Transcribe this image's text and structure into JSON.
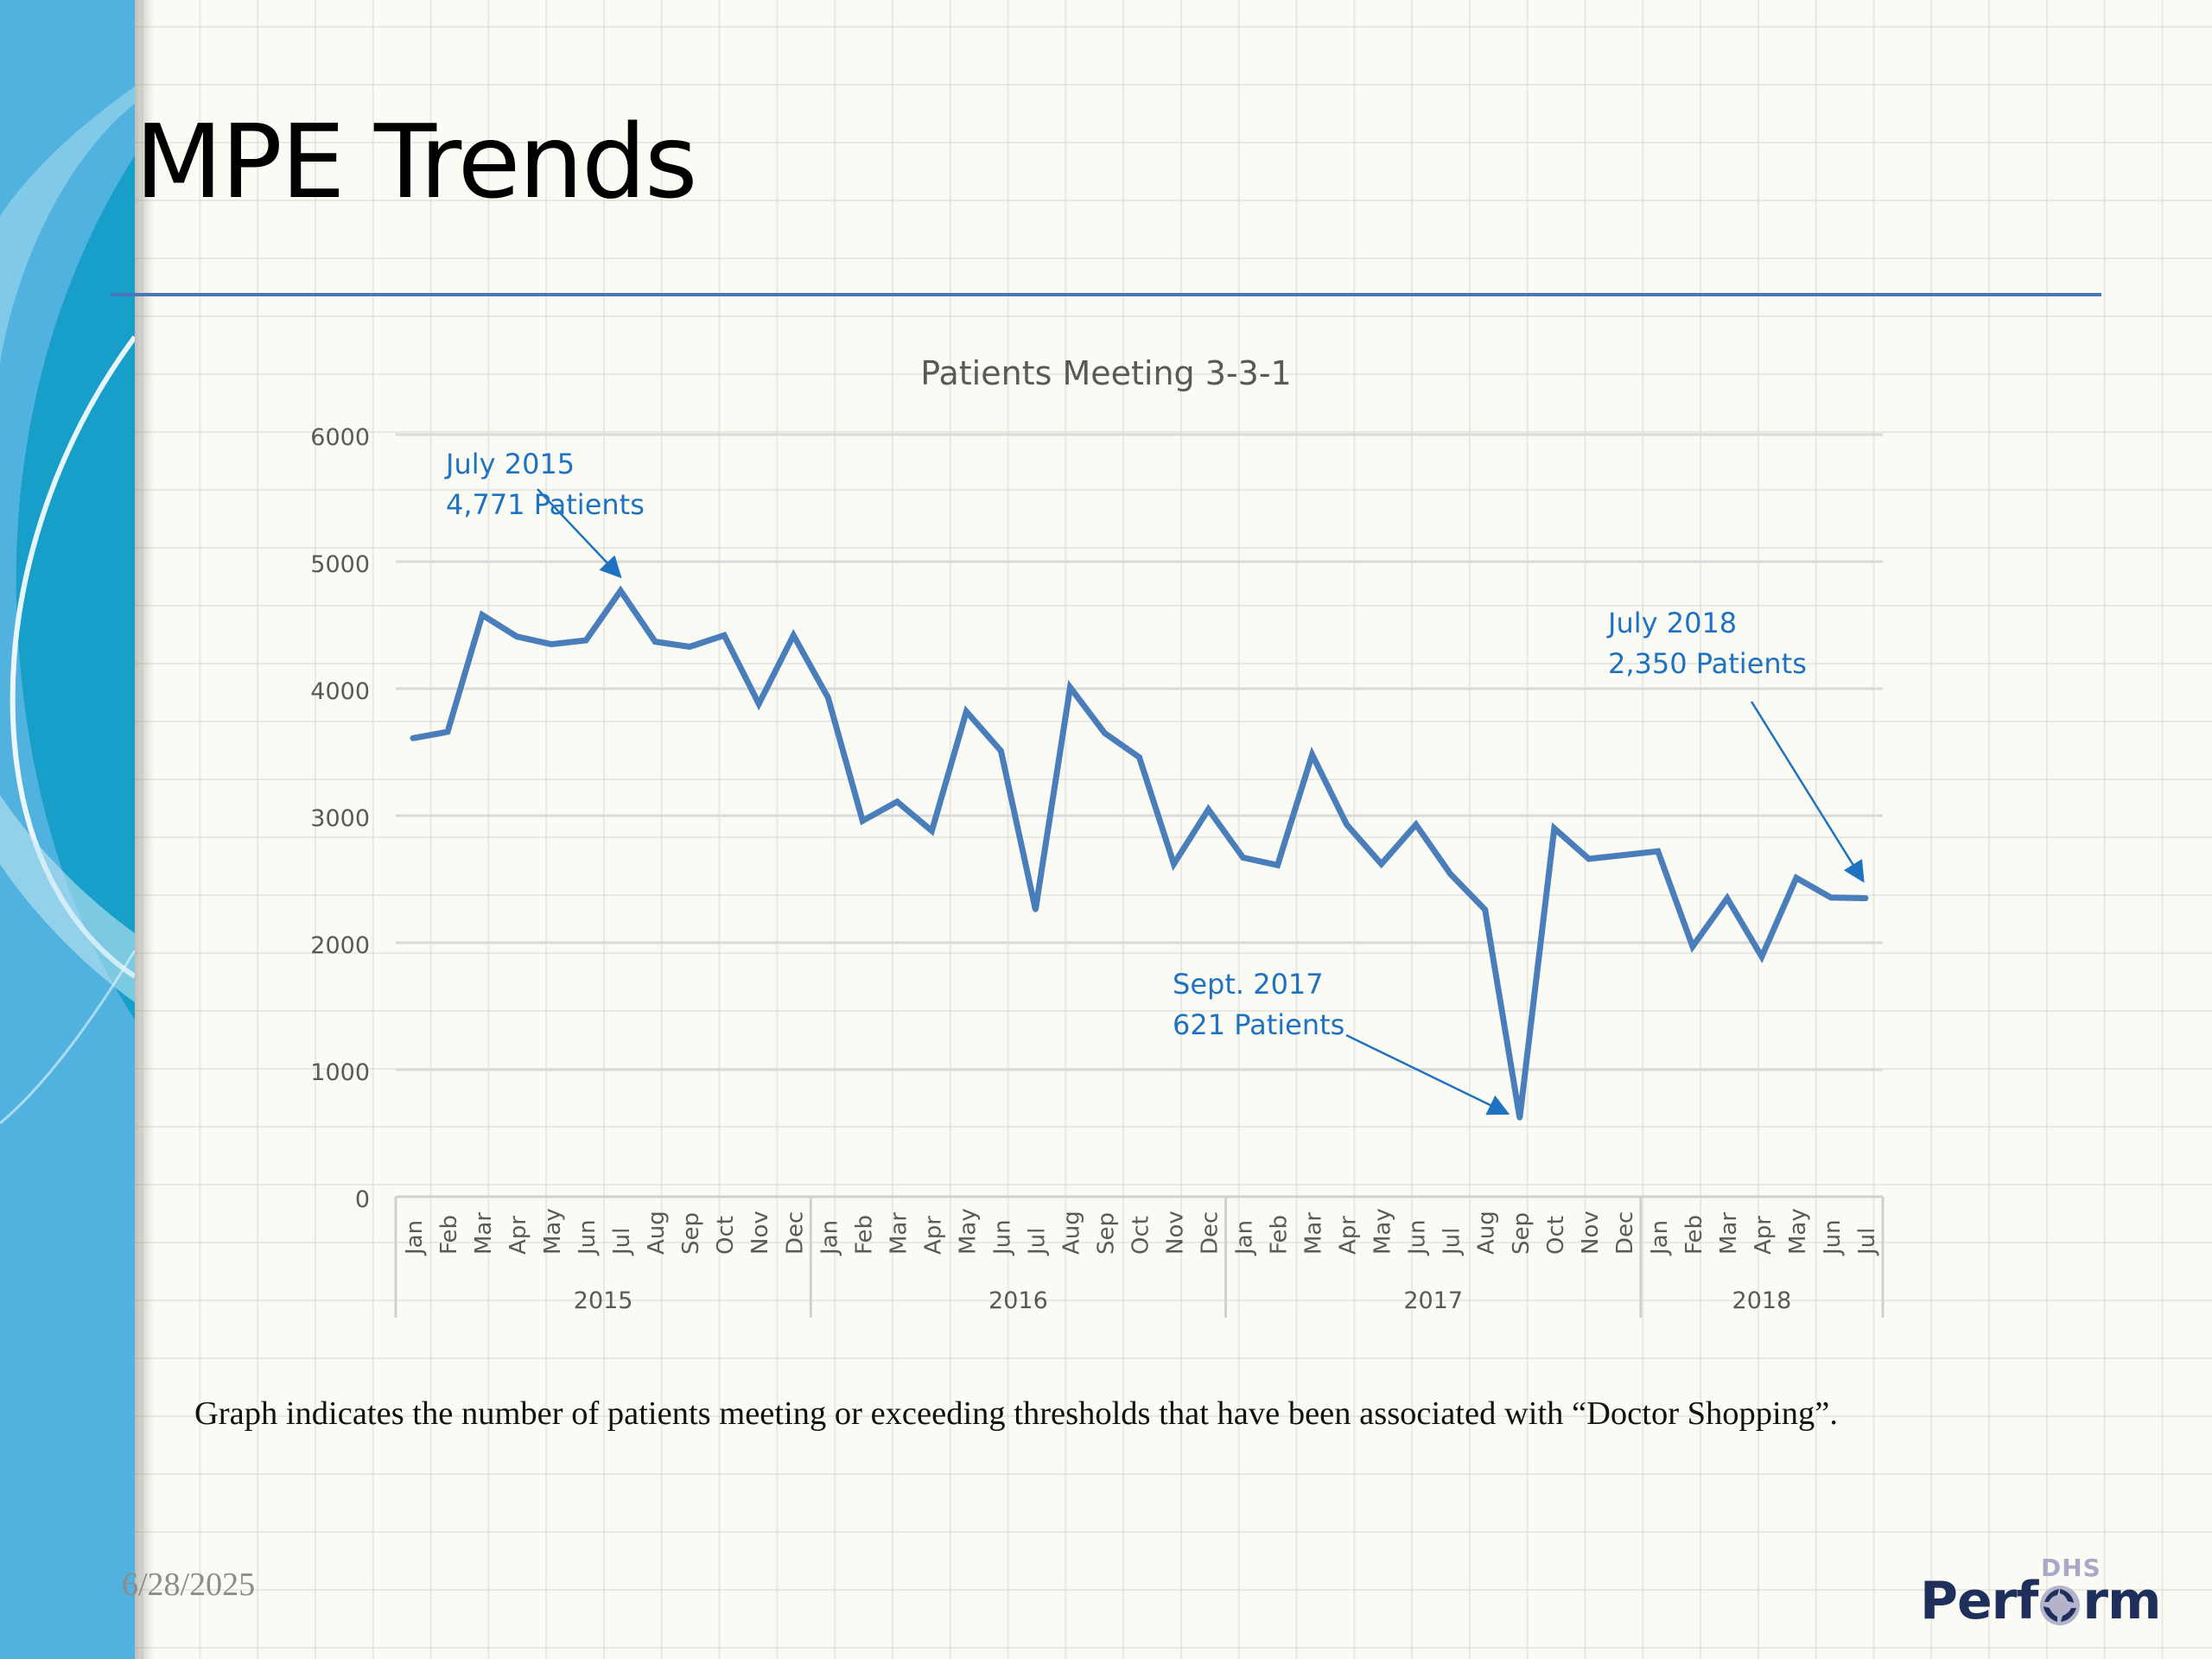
{
  "slide": {
    "title": "MPE Trends",
    "caption": "Graph indicates the number of patients meeting or exceeding thresholds that have been associated with “Doctor Shopping”.",
    "date": "6/28/2025",
    "logo": {
      "top_text": "DHS",
      "word_left": "Perf",
      "word_right": "rm",
      "icon": "swirl-o-icon"
    }
  },
  "colors": {
    "series": "#4a7ebb",
    "annotation": "#1f72c0",
    "title_rule": "#4a77b9",
    "axis_text": "#595959",
    "gridline": "#d9d9d9",
    "left_panel": "#52b2df",
    "logo_navy": "#1f2f5c"
  },
  "chart_data": {
    "type": "line",
    "title": "Patients Meeting 3-3-1",
    "xlabel": "",
    "ylabel": "",
    "ylim": [
      0,
      6000
    ],
    "yticks": [
      0,
      1000,
      2000,
      3000,
      4000,
      5000,
      6000
    ],
    "grid": true,
    "legend": "none",
    "x_groups": [
      {
        "label": "2015",
        "months": [
          "Jan",
          "Feb",
          "Mar",
          "Apr",
          "May",
          "Jun",
          "Jul",
          "Aug",
          "Sep",
          "Oct",
          "Nov",
          "Dec"
        ]
      },
      {
        "label": "2016",
        "months": [
          "Jan",
          "Feb",
          "Mar",
          "Apr",
          "May",
          "Jun",
          "Jul",
          "Aug",
          "Sep",
          "Oct",
          "Nov",
          "Dec"
        ]
      },
      {
        "label": "2017",
        "months": [
          "Jan",
          "Feb",
          "Mar",
          "Apr",
          "May",
          "Jun",
          "Jul",
          "Aug",
          "Sep",
          "Oct",
          "Nov",
          "Dec"
        ]
      },
      {
        "label": "2018",
        "months": [
          "Jan",
          "Feb",
          "Mar",
          "Apr",
          "May",
          "Jun",
          "Jul"
        ]
      }
    ],
    "series": [
      {
        "name": "Patients Meeting 3-3-1",
        "values": [
          3610,
          3660,
          4580,
          4410,
          4350,
          4380,
          4771,
          4370,
          4330,
          4420,
          3880,
          4420,
          3930,
          2960,
          3110,
          2880,
          3820,
          3510,
          2260,
          4010,
          3650,
          3460,
          2620,
          3050,
          2670,
          2610,
          3480,
          2930,
          2620,
          2930,
          2540,
          2260,
          621,
          2900,
          2660,
          2690,
          2720,
          1970,
          2350,
          1890,
          2510,
          2355,
          2350
        ]
      }
    ],
    "annotations": [
      {
        "lines": [
          "July 2015",
          "4,771 Patients"
        ],
        "target": {
          "group": 0,
          "month": 6
        }
      },
      {
        "lines": [
          "Sept. 2017",
          "621 Patients"
        ],
        "target": {
          "group": 2,
          "month": 8
        }
      },
      {
        "lines": [
          "July 2018",
          "2,350 Patients"
        ],
        "target": {
          "group": 3,
          "month": 6
        }
      }
    ]
  }
}
